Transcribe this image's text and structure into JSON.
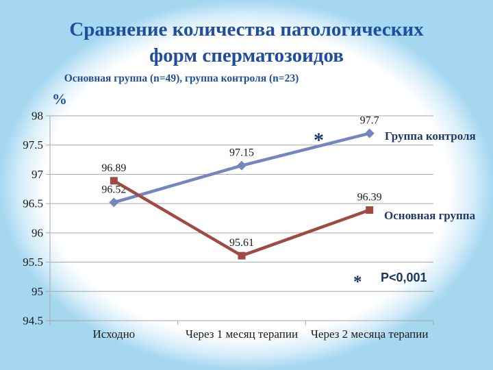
{
  "slide": {
    "title_line1": "Сравнение количества патологических",
    "title_line2": "форм сперматозоидов",
    "subtitle": "Основная группа (n=49), группа контроля (n=23)"
  },
  "chart_data": {
    "type": "line",
    "unit_label": "%",
    "categories": [
      "Исходно",
      "Через 1 месяц терапии",
      "Через 2 месяца терапии"
    ],
    "series": [
      {
        "name": "Группа контроля",
        "values": [
          96.52,
          97.15,
          97.7
        ],
        "color": "#7386C0",
        "marker": "diamond"
      },
      {
        "name": "Основная группа",
        "values": [
          96.89,
          95.61,
          96.39
        ],
        "color": "#9E4B46",
        "marker": "square"
      }
    ],
    "ylim": [
      94.5,
      98
    ],
    "ytick_step": 0.5,
    "grid": true,
    "legend_position": "right-of-last-point",
    "annotations": {
      "series_asterisk": "*",
      "significance_marker": "*",
      "significance_note": "Р<0,001"
    }
  },
  "colors": {
    "title_text": "#1F4E9C",
    "legend_text": "#1F3864",
    "note_text": "#17365D",
    "tick_text": "#1A1A1A",
    "gridline": "#A6A6A6",
    "control_line": "#7386C0",
    "main_line": "#9E4B46",
    "bg_edge": "#A5D7F1"
  }
}
